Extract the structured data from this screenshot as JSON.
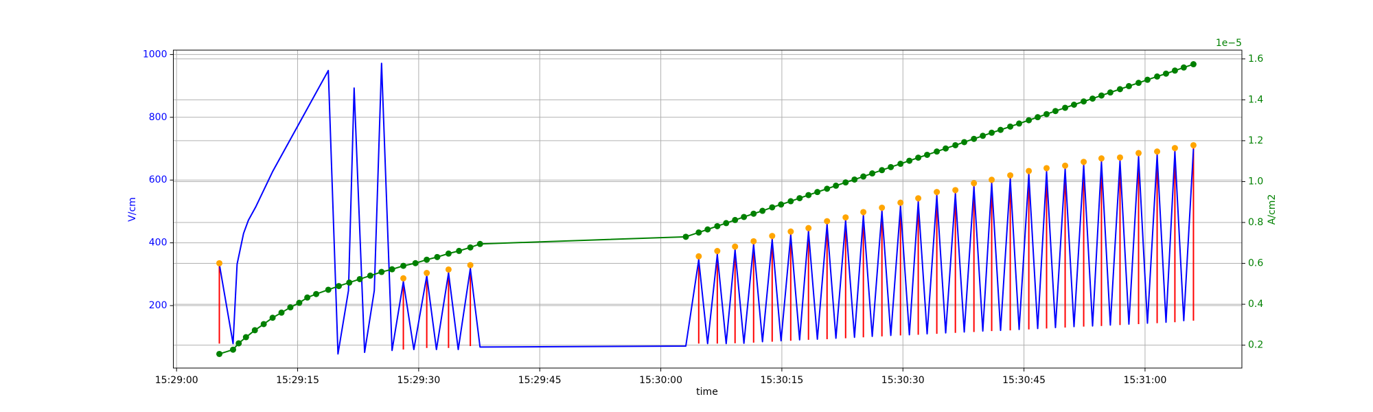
{
  "chart_data": {
    "type": "line",
    "xlabel": "time",
    "ylabel": "V/cm",
    "y2label": "A/cm2",
    "y2offset": "1e−5",
    "grid": true,
    "xlim": [
      "15:28:59.6",
      "15:31:12.0"
    ],
    "xticks": [
      "15:29:00",
      "15:29:15",
      "15:29:30",
      "15:29:45",
      "15:30:00",
      "15:30:15",
      "15:30:30",
      "15:30:45",
      "15:31:00"
    ],
    "ylim": [
      1,
      1014
    ],
    "yticks": [
      200,
      400,
      600,
      800,
      1000
    ],
    "y2lim": [
      0.088,
      1.643
    ],
    "y2ticks": [
      0.2,
      0.4,
      0.6,
      0.8,
      {
        "value": 1,
        "label": "1.0"
      },
      1.2,
      1.4,
      1.6
    ],
    "series": [
      {
        "style": "vlines",
        "color": "#ff0000",
        "x": [
          "15:29:05.3",
          "15:29:28.1",
          "15:29:31.0",
          "15:29:33.7",
          "15:29:36.4",
          "15:30:04.7",
          "15:30:07.0",
          "15:30:09.2",
          "15:30:11.5",
          "15:30:13.8",
          "15:30:16.1",
          "15:30:18.3",
          "15:30:20.6",
          "15:30:22.9",
          "15:30:25.1",
          "15:30:27.4",
          "15:30:29.7",
          "15:30:31.9",
          "15:30:34.2",
          "15:30:36.5",
          "15:30:38.8",
          "15:30:41.0",
          "15:30:43.3",
          "15:30:45.6",
          "15:30:47.8",
          "15:30:50.1",
          "15:30:52.4",
          "15:30:54.6",
          "15:30:56.9",
          "15:30:59.2",
          "15:31:01.5",
          "15:31:03.7",
          "15:31:06.0"
        ],
        "values": [
          335,
          287,
          304,
          315,
          329,
          357,
          374,
          388,
          405,
          422,
          436,
          447,
          469,
          481,
          498,
          512,
          528,
          542,
          562,
          568,
          590,
          601,
          615,
          629,
          638,
          646,
          658,
          669,
          672,
          686,
          691,
          702,
          711
        ],
        "lows": [
          79,
          60,
          65,
          65,
          71,
          79,
          79,
          80,
          82,
          85,
          88,
          91,
          93,
          96,
          99,
          102,
          105,
          107,
          110,
          113,
          116,
          119,
          121,
          124,
          127,
          130,
          133,
          135,
          138,
          141,
          144,
          147,
          152
        ]
      },
      {
        "style": "line",
        "color": "#0000ff",
        "x": [
          "15:29:05.3",
          "15:29:07.0",
          "15:29:07.5",
          "15:29:08.3",
          "15:29:08.9",
          "15:29:09.8",
          "15:29:11.9",
          "15:29:15.2",
          "15:29:18.8",
          "15:29:20.0",
          "15:29:21.3",
          "15:29:22.0",
          "15:29:23.3",
          "15:29:24.5",
          "15:29:25.4",
          "15:29:26.7",
          "15:29:28.1",
          "15:29:29.4",
          "15:29:31.0",
          "15:29:32.2",
          "15:29:33.7",
          "15:29:34.9",
          "15:29:36.4",
          "15:29:37.6",
          "15:30:03.1",
          "15:30:04.7",
          "15:30:05.8",
          "15:30:07.0",
          "15:30:08.1",
          "15:30:09.2",
          "15:30:10.3",
          "15:30:11.5",
          "15:30:12.6",
          "15:30:13.8",
          "15:30:14.9",
          "15:30:16.1",
          "15:30:17.2",
          "15:30:18.3",
          "15:30:19.4",
          "15:30:20.6",
          "15:30:21.7",
          "15:30:22.9",
          "15:30:24.0",
          "15:30:25.1",
          "15:30:26.2",
          "15:30:27.4",
          "15:30:28.5",
          "15:30:29.7",
          "15:30:30.8",
          "15:30:31.9",
          "15:30:33.0",
          "15:30:34.2",
          "15:30:35.3",
          "15:30:36.5",
          "15:30:37.6",
          "15:30:38.8",
          "15:30:39.9",
          "15:30:41.0",
          "15:30:42.1",
          "15:30:43.3",
          "15:30:44.4",
          "15:30:45.6",
          "15:30:46.7",
          "15:30:47.8",
          "15:30:48.9",
          "15:30:50.1",
          "15:30:51.2",
          "15:30:52.4",
          "15:30:53.5",
          "15:30:54.6",
          "15:30:55.7",
          "15:30:56.9",
          "15:30:58.0",
          "15:30:59.2",
          "15:31:00.3",
          "15:31:01.5",
          "15:31:02.6",
          "15:31:03.7",
          "15:31:04.8",
          "15:31:06.0"
        ],
        "values": [
          332,
          79,
          332,
          430,
          472,
          514,
          627,
          781,
          949,
          46,
          248,
          893,
          51,
          248,
          972,
          57,
          276,
          60,
          295,
          60,
          304,
          60,
          318,
          68,
          71,
          346,
          79,
          362,
          79,
          377,
          80,
          394,
          85,
          410,
          88,
          424,
          91,
          436,
          93,
          458,
          96,
          470,
          99,
          486,
          102,
          500,
          105,
          516,
          107,
          530,
          110,
          550,
          113,
          556,
          116,
          578,
          119,
          589,
          121,
          603,
          124,
          617,
          127,
          626,
          130,
          634,
          133,
          646,
          135,
          657,
          138,
          660,
          141,
          674,
          144,
          679,
          147,
          690,
          152,
          699
        ]
      },
      {
        "style": "markers",
        "color": "#ffa500",
        "x": [
          "15:29:05.3",
          "15:29:28.1",
          "15:29:31.0",
          "15:29:33.7",
          "15:29:36.4",
          "15:30:04.7",
          "15:30:07.0",
          "15:30:09.2",
          "15:30:11.5",
          "15:30:13.8",
          "15:30:16.1",
          "15:30:18.3",
          "15:30:20.6",
          "15:30:22.9",
          "15:30:25.1",
          "15:30:27.4",
          "15:30:29.7",
          "15:30:31.9",
          "15:30:34.2",
          "15:30:36.5",
          "15:30:38.8",
          "15:30:41.0",
          "15:30:43.3",
          "15:30:45.6",
          "15:30:47.8",
          "15:30:50.1",
          "15:30:52.4",
          "15:30:54.6",
          "15:30:56.9",
          "15:30:59.2",
          "15:31:01.5",
          "15:31:03.7",
          "15:31:06.0"
        ],
        "values": [
          335,
          287,
          304,
          315,
          329,
          357,
          374,
          388,
          405,
          422,
          436,
          447,
          469,
          481,
          498,
          512,
          528,
          542,
          562,
          568,
          590,
          601,
          615,
          629,
          638,
          646,
          658,
          669,
          672,
          686,
          691,
          702,
          711
        ]
      },
      {
        "style": "line-markers",
        "color": "#008000",
        "axis": "y2",
        "x": [
          "15:29:05.3",
          "15:29:07.0",
          "15:29:07.7",
          "15:29:08.6",
          "15:29:09.7",
          "15:29:10.8",
          "15:29:11.9",
          "15:29:13.0",
          "15:29:14.1",
          "15:29:15.2",
          "15:29:16.2",
          "15:29:17.3",
          "15:29:18.8",
          "15:29:20.1",
          "15:29:21.4",
          "15:29:22.7",
          "15:29:24.0",
          "15:29:25.4",
          "15:29:26.7",
          "15:29:28.1",
          "15:29:29.6",
          "15:29:31.0",
          "15:29:32.3",
          "15:29:33.7",
          "15:29:35.0",
          "15:29:36.4",
          "15:29:37.6",
          "15:30:03.1",
          "15:30:04.7",
          "15:30:05.8",
          "15:30:07.0",
          "15:30:08.1",
          "15:30:09.2",
          "15:30:10.3",
          "15:30:11.5",
          "15:30:12.6",
          "15:30:13.8",
          "15:30:14.9",
          "15:30:16.1",
          "15:30:17.2",
          "15:30:18.3",
          "15:30:19.4",
          "15:30:20.6",
          "15:30:21.7",
          "15:30:22.9",
          "15:30:24.0",
          "15:30:25.1",
          "15:30:26.2",
          "15:30:27.4",
          "15:30:28.5",
          "15:30:29.7",
          "15:30:30.8",
          "15:30:31.9",
          "15:30:33.0",
          "15:30:34.2",
          "15:30:35.3",
          "15:30:36.5",
          "15:30:37.6",
          "15:30:38.8",
          "15:30:39.9",
          "15:30:41.0",
          "15:30:42.1",
          "15:30:43.3",
          "15:30:44.4",
          "15:30:45.6",
          "15:30:46.7",
          "15:30:47.8",
          "15:30:48.9",
          "15:30:50.1",
          "15:30:51.2",
          "15:30:52.4",
          "15:30:53.5",
          "15:30:54.6",
          "15:30:55.7",
          "15:30:56.9",
          "15:30:58.0",
          "15:30:59.2",
          "15:31:00.3",
          "15:31:01.5",
          "15:31:02.6",
          "15:31:03.7",
          "15:31:04.8",
          "15:31:06.0"
        ],
        "values": [
          0.157,
          0.178,
          0.209,
          0.239,
          0.273,
          0.303,
          0.334,
          0.359,
          0.385,
          0.407,
          0.433,
          0.45,
          0.471,
          0.489,
          0.506,
          0.523,
          0.54,
          0.558,
          0.571,
          0.588,
          0.601,
          0.618,
          0.631,
          0.648,
          0.661,
          0.678,
          0.695,
          0.73,
          0.751,
          0.766,
          0.782,
          0.797,
          0.812,
          0.827,
          0.843,
          0.857,
          0.874,
          0.888,
          0.904,
          0.919,
          0.934,
          0.949,
          0.965,
          0.98,
          0.996,
          1.01,
          1.025,
          1.04,
          1.056,
          1.071,
          1.087,
          1.102,
          1.117,
          1.131,
          1.147,
          1.162,
          1.178,
          1.193,
          1.209,
          1.224,
          1.239,
          1.253,
          1.269,
          1.284,
          1.3,
          1.315,
          1.33,
          1.345,
          1.361,
          1.376,
          1.392,
          1.406,
          1.421,
          1.436,
          1.452,
          1.467,
          1.483,
          1.498,
          1.514,
          1.528,
          1.543,
          1.558,
          1.574
        ]
      }
    ]
  }
}
